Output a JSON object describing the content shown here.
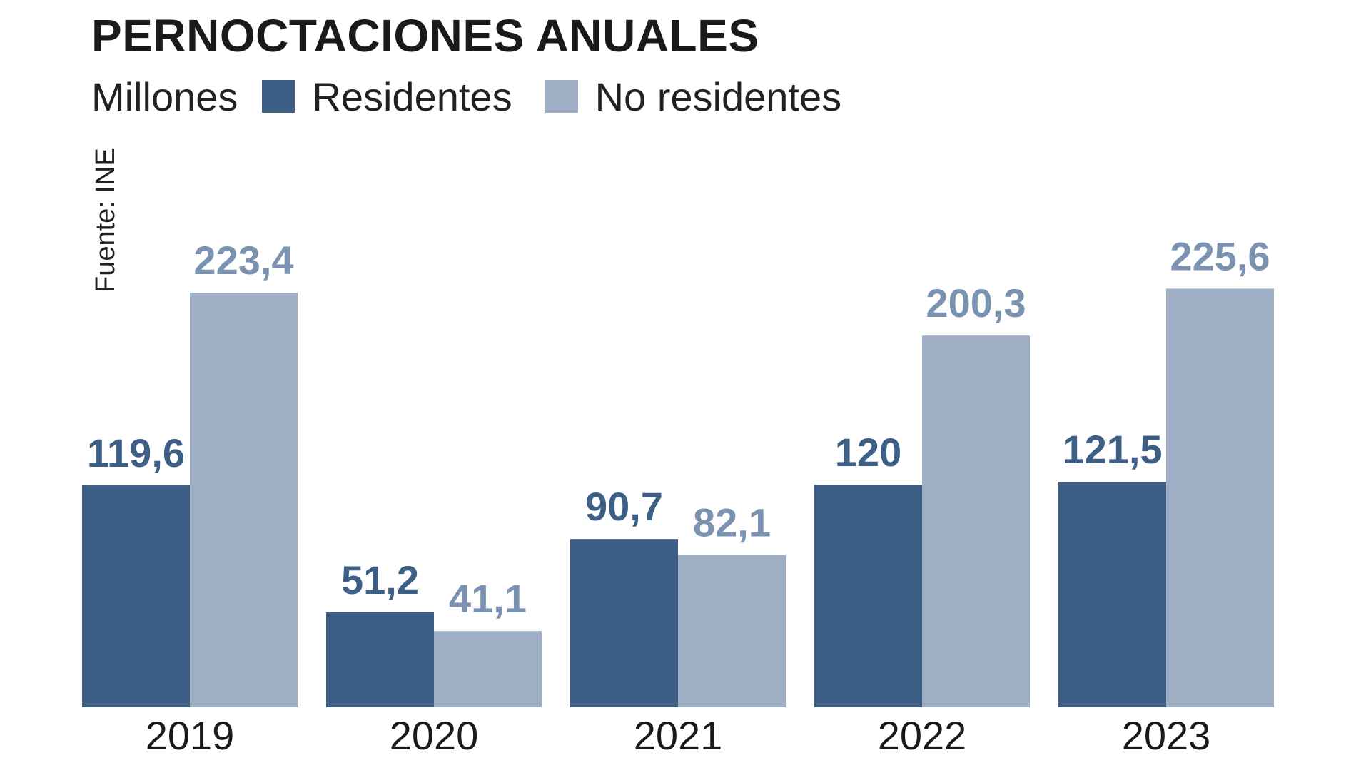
{
  "chart_data": {
    "type": "bar",
    "title": "PERNOCTACIONES ANUALES",
    "unit_label": "Millones",
    "source": "Fuente: INE",
    "categories": [
      "2019",
      "2020",
      "2021",
      "2022",
      "2023"
    ],
    "series": [
      {
        "name": "Residentes",
        "color": "#3d5e85",
        "values": [
          119.6,
          51.2,
          90.7,
          120,
          121.5
        ],
        "labels": [
          "119,6",
          "51,2",
          "90,7",
          "120",
          "121,5"
        ]
      },
      {
        "name": "No residentes",
        "color": "#9eafc5",
        "label_color": "#7b92b1",
        "values": [
          223.4,
          41.1,
          82.1,
          200.3,
          225.6
        ],
        "labels": [
          "223,4",
          "41,1",
          "82,1",
          "200,3",
          "225,6"
        ]
      }
    ],
    "ylim": [
      0,
      240
    ],
    "grid": false,
    "legend_position": "top-left"
  }
}
